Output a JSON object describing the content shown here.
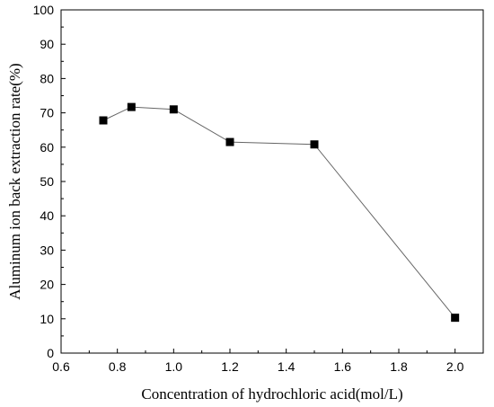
{
  "chart_data": {
    "type": "line",
    "title": "",
    "xlabel": "Concentration of hydrochloric acid(mol/L)",
    "ylabel": "Aluminum ion back extraction rate(%)",
    "xlim": [
      0.6,
      2.1
    ],
    "ylim": [
      0,
      100
    ],
    "x_ticks": [
      "0.6",
      "0.8",
      "1.0",
      "1.2",
      "1.4",
      "1.6",
      "1.8",
      "2.0"
    ],
    "y_ticks": [
      "0",
      "10",
      "20",
      "30",
      "40",
      "50",
      "60",
      "70",
      "80",
      "90",
      "100"
    ],
    "grid": false,
    "series": [
      {
        "x": [
          0.75,
          0.85,
          1.0,
          1.2,
          1.5,
          2.0
        ],
        "y": [
          67.8,
          71.7,
          71.0,
          61.5,
          60.8,
          10.3
        ],
        "marker": "square",
        "color": "#000000",
        "line_color": "#666666"
      }
    ]
  }
}
